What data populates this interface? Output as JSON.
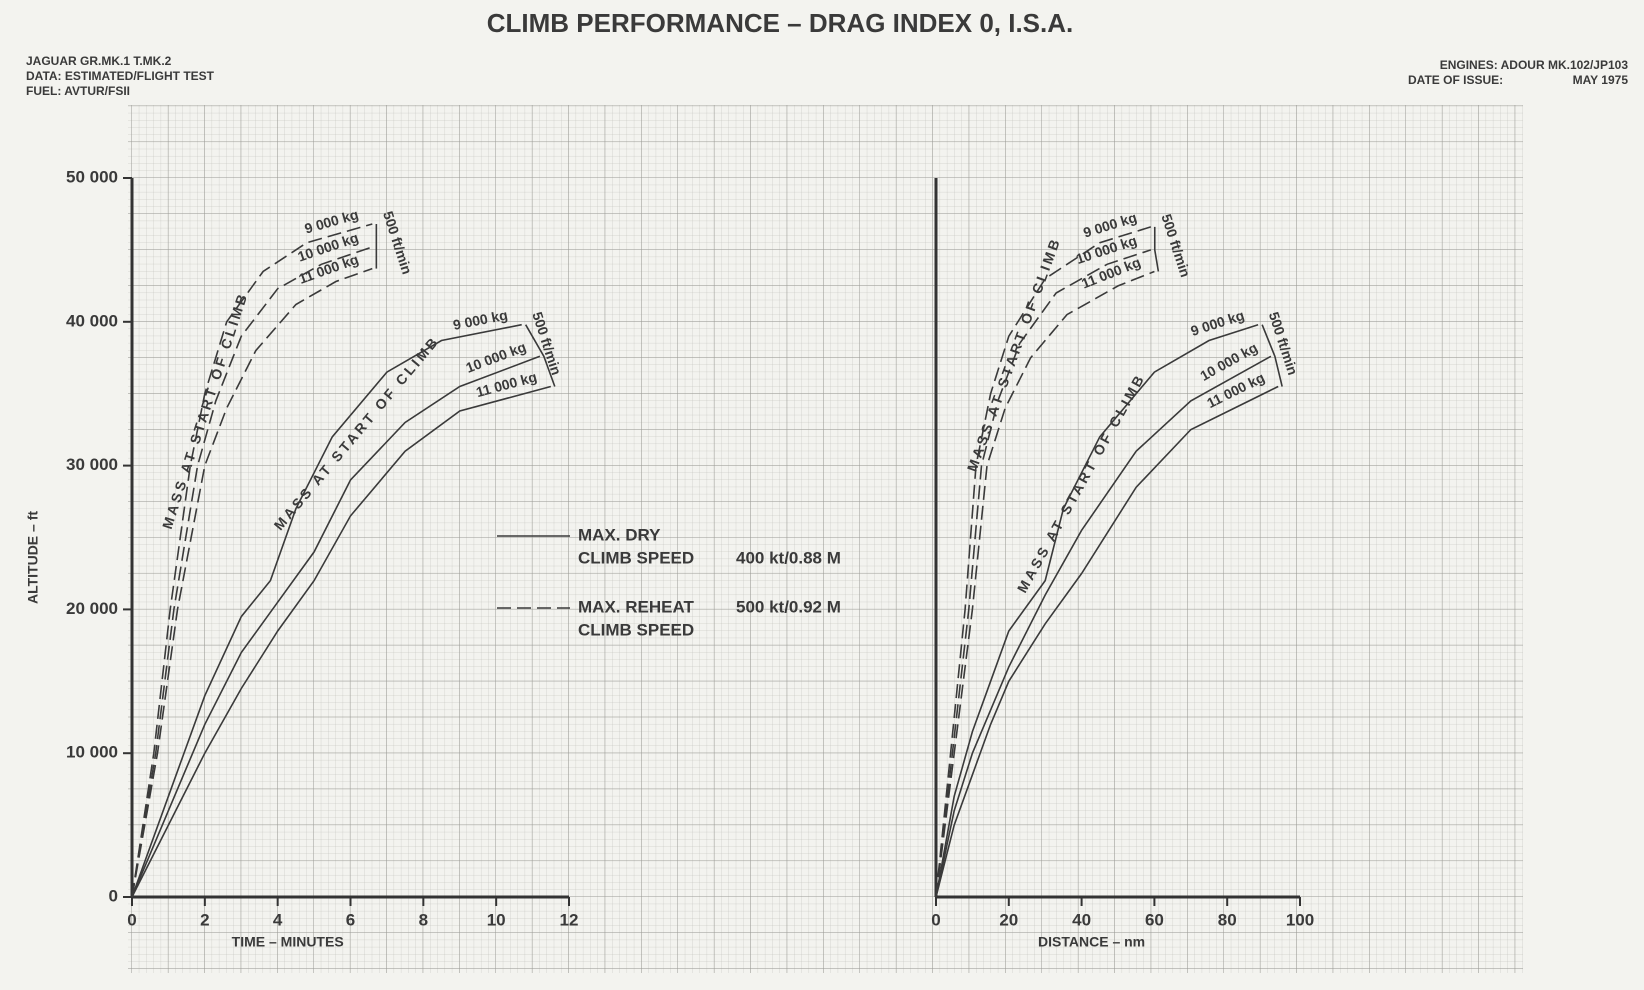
{
  "header": {
    "title": "CLIMB PERFORMANCE – DRAG INDEX 0, I.S.A.",
    "left_lines": [
      "JAGUAR GR.MK.1 T.MK.2",
      "DATA: ESTIMATED/FLIGHT TEST",
      "FUEL: AVTUR/FSII"
    ],
    "right_lines": [
      "ENGINES: ADOUR MK.102/JP103",
      "DATE OF ISSUE:",
      "MAY 1975"
    ]
  },
  "legend": {
    "items": [
      {
        "lines": [
          "MAX. DRY",
          "CLIMB SPEED"
        ],
        "speed": "400 kt/0.88 M",
        "dashed": false
      },
      {
        "lines": [
          "MAX. REHEAT",
          "CLIMB SPEED"
        ],
        "speed": "500 kt/0.92 M",
        "dashed": true
      }
    ]
  },
  "chart_data": [
    {
      "type": "line",
      "xlabel": "TIME – MINUTES",
      "ylabel": "ALTITUDE – ft",
      "xlim": [
        0,
        12
      ],
      "xticks": [
        0,
        2,
        4,
        6,
        8,
        10,
        12
      ],
      "ylim": [
        0,
        50000
      ],
      "yticks": [
        0,
        {
          "value": 10000,
          "label": "10 000"
        },
        {
          "value": 20000,
          "label": "20 000"
        },
        {
          "value": 30000,
          "label": "30 000"
        },
        {
          "value": 40000,
          "label": "40 000"
        },
        {
          "value": 50000,
          "label": "50 000"
        }
      ],
      "grid": true,
      "annotations": [
        "MASS AT START OF CLIMB",
        "500 ft/min",
        "MASS AT START OF CLIMB",
        "500 ft/min"
      ],
      "series": [
        {
          "name": "9 000 kg",
          "color": "#3a3a3a",
          "dashed": false,
          "x": [
            0,
            1,
            2,
            3,
            3.8,
            4.5,
            5.5,
            7,
            8.5,
            10.7
          ],
          "values": [
            0,
            7000,
            14000,
            19500,
            22000,
            27000,
            32000,
            36500,
            38700,
            39800
          ]
        },
        {
          "name": "10 000 kg",
          "color": "#3a3a3a",
          "dashed": false,
          "x": [
            0,
            1,
            2,
            3,
            4,
            5,
            6,
            7.5,
            9,
            11.2
          ],
          "values": [
            0,
            6000,
            12000,
            17000,
            20500,
            24000,
            29000,
            33000,
            35500,
            37600
          ]
        },
        {
          "name": "11 000 kg",
          "color": "#3a3a3a",
          "dashed": false,
          "x": [
            0,
            1,
            2,
            3,
            4,
            5,
            6,
            7.5,
            9,
            11.5
          ],
          "values": [
            0,
            5000,
            10000,
            14500,
            18500,
            22000,
            26500,
            31000,
            33800,
            35500
          ]
        },
        {
          "name": "9 000 kg",
          "color": "#3a3a3a",
          "dashed": true,
          "x": [
            0,
            0.6,
            1.05,
            1.6,
            2.0,
            2.6,
            3.6,
            4.8,
            6.6
          ],
          "values": [
            0,
            10000,
            20000,
            30000,
            35000,
            40000,
            43500,
            45500,
            46800
          ]
        },
        {
          "name": "10 000 kg",
          "color": "#3a3a3a",
          "dashed": true,
          "x": [
            0,
            0.65,
            1.15,
            1.8,
            2.3,
            3.0,
            4.0,
            5.2,
            6.6
          ],
          "values": [
            0,
            10000,
            20000,
            30000,
            34500,
            39000,
            42300,
            44000,
            45200
          ]
        },
        {
          "name": "11 000 kg",
          "color": "#3a3a3a",
          "dashed": true,
          "x": [
            0,
            0.7,
            1.25,
            2.0,
            2.6,
            3.4,
            4.5,
            5.6,
            6.6
          ],
          "values": [
            0,
            10000,
            20000,
            30000,
            34000,
            38000,
            41200,
            42800,
            43700
          ]
        }
      ]
    },
    {
      "type": "line",
      "xlabel": "DISTANCE – nm",
      "xlim": [
        0,
        100
      ],
      "xticks": [
        0,
        20,
        40,
        60,
        80,
        100
      ],
      "ylim": [
        0,
        50000
      ],
      "grid": true,
      "annotations": [
        "MASS AT START OF CLIMB",
        "500 ft/min",
        "MASS AT START OF CLIMB",
        "500 ft/min"
      ],
      "series": [
        {
          "name": "9 000 kg",
          "color": "#3a3a3a",
          "dashed": false,
          "x": [
            0,
            5,
            10,
            15,
            20,
            30,
            35,
            45,
            60,
            75,
            88.5
          ],
          "values": [
            0,
            7000,
            11500,
            15000,
            18500,
            22000,
            27000,
            32000,
            36500,
            38700,
            39800
          ]
        },
        {
          "name": "10 000 kg",
          "color": "#3a3a3a",
          "dashed": false,
          "x": [
            0,
            5,
            10,
            15,
            20,
            30,
            40,
            55,
            70,
            92
          ],
          "values": [
            0,
            6000,
            10000,
            13000,
            16000,
            21000,
            25500,
            31000,
            34500,
            37600
          ]
        },
        {
          "name": "11 000 kg",
          "color": "#3a3a3a",
          "dashed": false,
          "x": [
            0,
            5,
            10,
            15,
            20,
            30,
            40,
            55,
            70,
            94
          ],
          "values": [
            0,
            5000,
            8500,
            12000,
            15000,
            19000,
            22500,
            28500,
            32500,
            35500
          ]
        },
        {
          "name": "9 000 kg",
          "color": "#3a3a3a",
          "dashed": true,
          "x": [
            0,
            4,
            8,
            11,
            15,
            20,
            30,
            45,
            59
          ],
          "values": [
            0,
            10000,
            20000,
            30000,
            35000,
            39000,
            43000,
            45500,
            46600
          ]
        },
        {
          "name": "10 000 kg",
          "color": "#3a3a3a",
          "dashed": true,
          "x": [
            0,
            4.5,
            9,
            12.5,
            17,
            23,
            33,
            47,
            59
          ],
          "values": [
            0,
            10000,
            20000,
            30000,
            34500,
            38500,
            42000,
            44000,
            45000
          ]
        },
        {
          "name": "11 000 kg",
          "color": "#3a3a3a",
          "dashed": true,
          "x": [
            0,
            5,
            10,
            14,
            19,
            26,
            36,
            50,
            60
          ],
          "values": [
            0,
            10000,
            20000,
            30000,
            34000,
            37500,
            40500,
            42500,
            43500
          ]
        }
      ]
    }
  ]
}
